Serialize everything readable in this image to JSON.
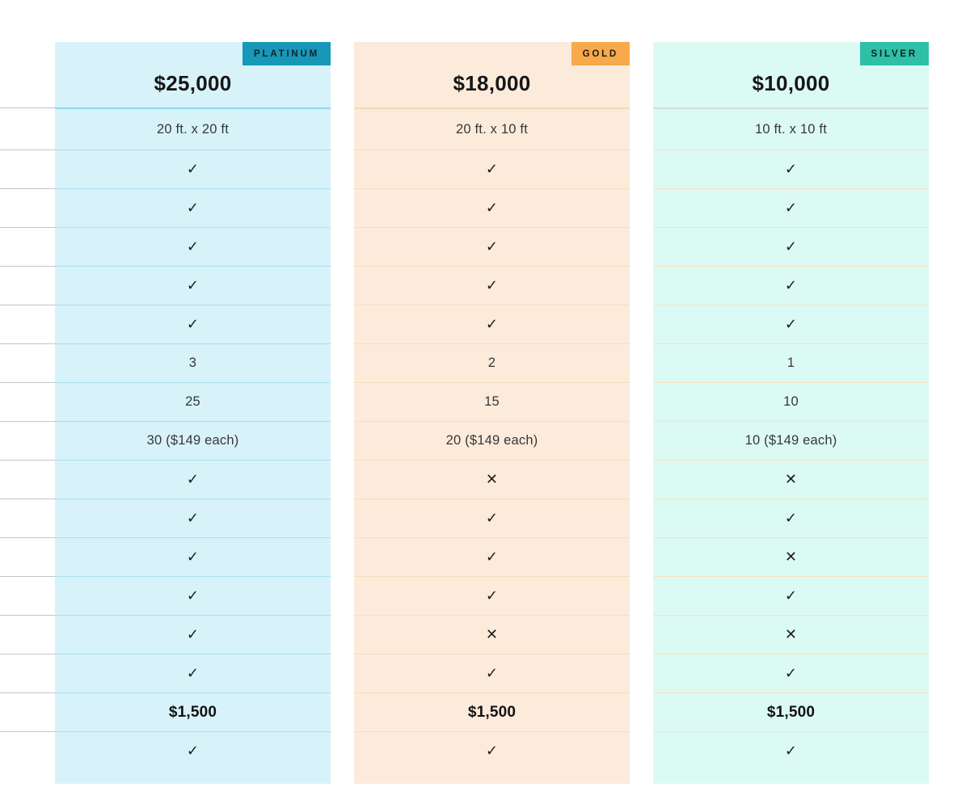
{
  "page": {
    "background": "#FFFFFF"
  },
  "table": {
    "check_symbol": "✓",
    "cross_symbol": "✕",
    "gutter_line_color": "#C5C5C5",
    "bold_rows": [
      15
    ],
    "tiers": [
      {
        "badge": "PLATINUM",
        "price": "$25,000",
        "colors": {
          "background": "#D8F2FA",
          "badge_background": "#1798B9",
          "badge_text": "#14222A",
          "header_divider": "#90D5E9",
          "row_divider": "#A8DFEF"
        },
        "rows": [
          "20 ft. x 20 ft",
          "check",
          "check",
          "check",
          "check",
          "check",
          "3",
          "25",
          "30 ($149 each)",
          "check",
          "check",
          "check",
          "check",
          "check",
          "check",
          "$1,500",
          "check"
        ]
      },
      {
        "badge": "GOLD",
        "price": "$18,000",
        "colors": {
          "background": "#FCEBDB",
          "badge_background": "#F7A94C",
          "badge_text": "#1E1B14",
          "header_divider": "#F2D7B8",
          "row_divider": "#F5DDC0"
        },
        "rows": [
          "20 ft. x 10 ft",
          "check",
          "check",
          "check",
          "check",
          "check",
          "2",
          "15",
          "20 ($149 each)",
          "cross",
          "check",
          "check",
          "check",
          "cross",
          "check",
          "$1,500",
          "check"
        ]
      },
      {
        "badge": "SILVER",
        "price": "$10,000",
        "colors": {
          "background": "#DCFAF4",
          "badge_background": "#2EC0A6",
          "badge_text": "#10211D",
          "header_divider": "#D9DDDB",
          "row_divider": "#F8E2BE"
        },
        "rows": [
          "10 ft. x 10 ft",
          "check",
          "check",
          "check",
          "check",
          "check",
          "1",
          "10",
          "10 ($149 each)",
          "cross",
          "check",
          "cross",
          "check",
          "cross",
          "check",
          "$1,500",
          "check"
        ]
      }
    ]
  }
}
